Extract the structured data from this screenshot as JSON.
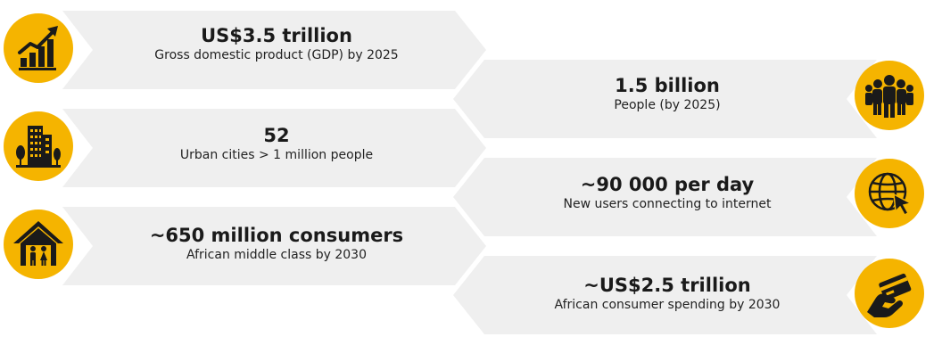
{
  "colors": {
    "badge": "#F5B400",
    "banner": "#EFEFEF",
    "icon": "#1A1A1A"
  },
  "stats": [
    {
      "value": "US$3.5 trillion",
      "label": "Gross domestic product (GDP) by 2025",
      "icon": "bar-chart-growth-icon"
    },
    {
      "value": "1.5 billion",
      "label": "People (by 2025)",
      "icon": "people-group-icon"
    },
    {
      "value": "52",
      "label": "Urban cities > 1 million people",
      "icon": "city-buildings-icon"
    },
    {
      "value": "~90 000 per day",
      "label": "New users connecting to internet",
      "icon": "globe-cursor-icon"
    },
    {
      "value": "~650 million consumers",
      "label": "African middle class by 2030",
      "icon": "house-family-icon"
    },
    {
      "value": "~US$2.5 trillion",
      "label": "African consumer spending by 2030",
      "icon": "hand-card-icon"
    }
  ]
}
